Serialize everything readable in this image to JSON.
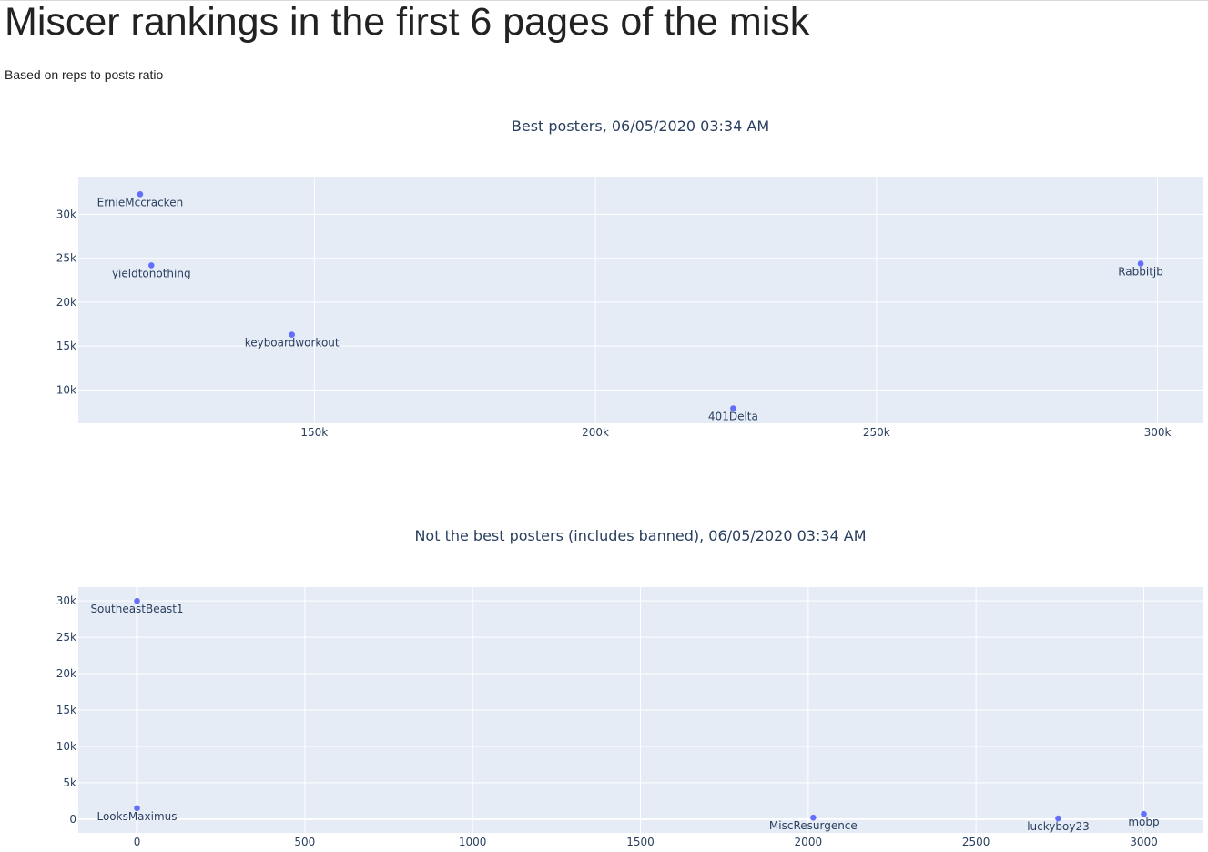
{
  "page": {
    "title": "Miscer rankings in the first 6 pages of the misk",
    "subtitle": "Based on reps to posts ratio"
  },
  "colors": {
    "plot_background": "#e5ecf6",
    "grid": "#ffffff",
    "marker": "#636efa",
    "text": "#2a3f5f"
  },
  "chart_data": [
    {
      "type": "scatter",
      "title": "Best posters, 06/05/2020 03:34 AM",
      "xlabel": "",
      "ylabel": "",
      "xlim": [
        108000,
        308000
      ],
      "ylim": [
        6200,
        34200
      ],
      "x_ticks": [
        150000,
        200000,
        250000,
        300000
      ],
      "x_tick_labels": [
        "150k",
        "200k",
        "250k",
        "300k"
      ],
      "y_ticks": [
        10000,
        15000,
        20000,
        25000,
        30000
      ],
      "y_tick_labels": [
        "10k",
        "15k",
        "20k",
        "25k",
        "30k"
      ],
      "grid": true,
      "points": [
        {
          "label": "ErnieMccracken",
          "x": 119000,
          "y": 32300
        },
        {
          "label": "yieldtonothing",
          "x": 121000,
          "y": 24200
        },
        {
          "label": "keyboardworkout",
          "x": 146000,
          "y": 16300
        },
        {
          "label": "401Delta",
          "x": 224500,
          "y": 7900
        },
        {
          "label": "Rabbitjb",
          "x": 297000,
          "y": 24400
        }
      ]
    },
    {
      "type": "scatter",
      "title": "Not the best posters (includes banned), 06/05/2020 03:34 AM",
      "xlabel": "",
      "ylabel": "",
      "xlim": [
        -175,
        3175
      ],
      "ylim": [
        -1900,
        31900
      ],
      "x_ticks": [
        0,
        500,
        1000,
        1500,
        2000,
        2500,
        3000
      ],
      "x_tick_labels": [
        "0",
        "500",
        "1000",
        "1500",
        "2000",
        "2500",
        "3000"
      ],
      "y_ticks": [
        0,
        5000,
        10000,
        15000,
        20000,
        25000,
        30000
      ],
      "y_tick_labels": [
        "0",
        "5k",
        "10k",
        "15k",
        "20k",
        "25k",
        "30k"
      ],
      "grid": true,
      "points": [
        {
          "label": "SoutheastBeast1",
          "x": 0,
          "y": 30000
        },
        {
          "label": "LooksMaximus",
          "x": 0,
          "y": 1500
        },
        {
          "label": "MiscResurgence",
          "x": 2015,
          "y": 200
        },
        {
          "label": "luckyboy23",
          "x": 2745,
          "y": 100
        },
        {
          "label": "mobp",
          "x": 3000,
          "y": 700
        }
      ]
    }
  ]
}
